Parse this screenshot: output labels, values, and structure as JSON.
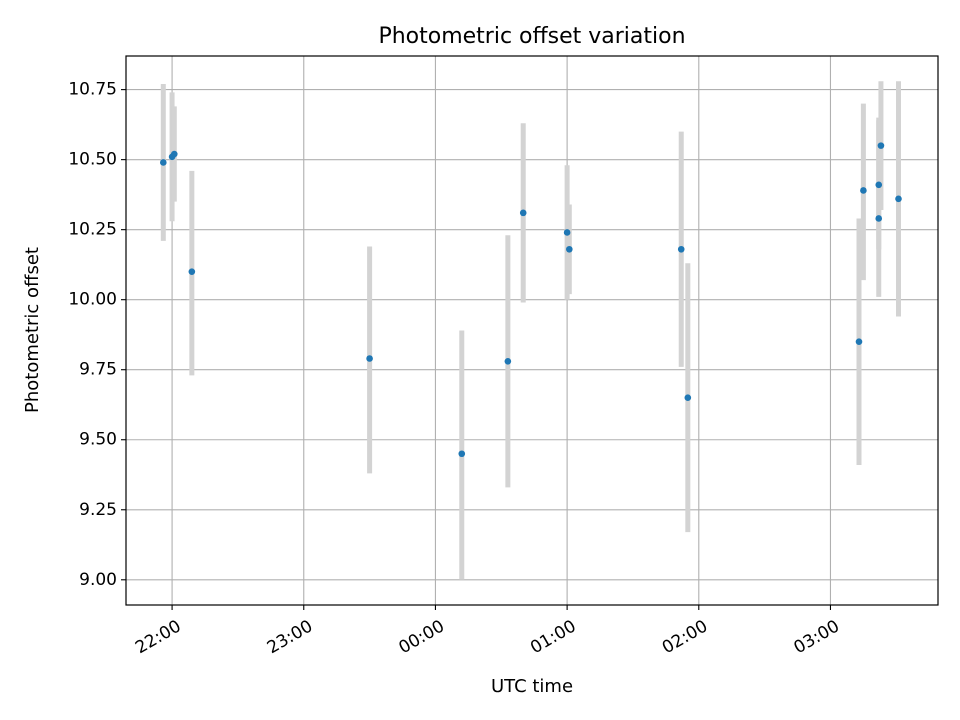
{
  "chart_data": {
    "type": "scatter",
    "title": "Photometric offset variation",
    "xlabel": "UTC time",
    "ylabel": "Photometric offset",
    "x_axis": {
      "kind": "time",
      "range": [
        "21:39",
        "03:49"
      ],
      "ticks": [
        "22:00",
        "23:00",
        "00:00",
        "01:00",
        "02:00",
        "03:00"
      ],
      "tick_label_rotation": "30 degrees"
    },
    "y_axis": {
      "range": [
        8.91,
        10.87
      ],
      "ticks": [
        9.0,
        9.25,
        9.5,
        9.75,
        10.0,
        10.25,
        10.5,
        10.75
      ],
      "tick_labels": [
        "9.00",
        "9.25",
        "9.50",
        "9.75",
        "10.00",
        "10.25",
        "10.50",
        "10.75"
      ]
    },
    "grid": true,
    "legend": "none",
    "colors": {
      "marker": "#1f77b4",
      "errorbar": "#d3d3d3",
      "grid": "#b0b0b0",
      "axes": "#000000"
    },
    "points": [
      {
        "x": "21:56",
        "y": 10.49,
        "ylow": 10.21,
        "yhigh": 10.77
      },
      {
        "x": "22:00",
        "y": 10.51,
        "ylow": 10.28,
        "yhigh": 10.74
      },
      {
        "x": "22:01",
        "y": 10.52,
        "ylow": 10.35,
        "yhigh": 10.69
      },
      {
        "x": "22:09",
        "y": 10.1,
        "ylow": 9.73,
        "yhigh": 10.46
      },
      {
        "x": "23:30",
        "y": 9.79,
        "ylow": 9.38,
        "yhigh": 10.19
      },
      {
        "x": "00:12",
        "y": 9.45,
        "ylow": 9.0,
        "yhigh": 9.89
      },
      {
        "x": "00:33",
        "y": 9.78,
        "ylow": 9.33,
        "yhigh": 10.23
      },
      {
        "x": "00:40",
        "y": 10.31,
        "ylow": 9.99,
        "yhigh": 10.63
      },
      {
        "x": "01:00",
        "y": 10.24,
        "ylow": 10.0,
        "yhigh": 10.48
      },
      {
        "x": "01:01",
        "y": 10.18,
        "ylow": 10.02,
        "yhigh": 10.34
      },
      {
        "x": "01:52",
        "y": 10.18,
        "ylow": 9.76,
        "yhigh": 10.6
      },
      {
        "x": "01:55",
        "y": 9.65,
        "ylow": 9.17,
        "yhigh": 10.13
      },
      {
        "x": "03:13",
        "y": 9.85,
        "ylow": 9.41,
        "yhigh": 10.29
      },
      {
        "x": "03:15",
        "y": 10.39,
        "ylow": 10.07,
        "yhigh": 10.7
      },
      {
        "x": "03:22",
        "y": 10.29,
        "ylow": 10.01,
        "yhigh": 10.64
      },
      {
        "x": "03:22",
        "y": 10.41,
        "ylow": 10.18,
        "yhigh": 10.65
      },
      {
        "x": "03:23",
        "y": 10.55,
        "ylow": 10.32,
        "yhigh": 10.78
      },
      {
        "x": "03:31",
        "y": 10.36,
        "ylow": 9.94,
        "yhigh": 10.78
      }
    ]
  }
}
